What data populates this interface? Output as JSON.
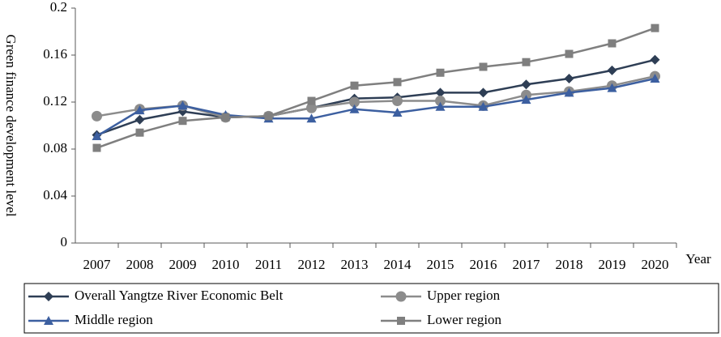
{
  "chart_data": {
    "type": "line",
    "y_label": "Green finance development level",
    "x_label": "Year",
    "categories": [
      "2007",
      "2008",
      "2009",
      "2010",
      "2011",
      "2012",
      "2013",
      "2014",
      "2015",
      "2016",
      "2017",
      "2018",
      "2019",
      "2020"
    ],
    "series": [
      {
        "name": "Overall Yangtze River Economic Belt",
        "color": "#2e3e55",
        "marker": "diamond",
        "values": [
          0.092,
          0.105,
          0.112,
          0.107,
          0.108,
          0.115,
          0.123,
          0.124,
          0.128,
          0.128,
          0.135,
          0.14,
          0.147,
          0.156
        ]
      },
      {
        "name": "Upper region",
        "color": "#8c8c8c",
        "marker": "circle",
        "values": [
          0.108,
          0.114,
          0.117,
          0.107,
          0.108,
          0.115,
          0.12,
          0.121,
          0.121,
          0.117,
          0.126,
          0.129,
          0.134,
          0.142
        ]
      },
      {
        "name": "Middle region",
        "color": "#3c5fa0",
        "marker": "triangle",
        "values": [
          0.091,
          0.113,
          0.117,
          0.109,
          0.106,
          0.106,
          0.114,
          0.111,
          0.116,
          0.116,
          0.122,
          0.128,
          0.132,
          0.14
        ]
      },
      {
        "name": "Lower region",
        "color": "#7f7f7f",
        "marker": "square",
        "values": [
          0.081,
          0.094,
          0.104,
          0.107,
          0.108,
          0.121,
          0.134,
          0.137,
          0.145,
          0.15,
          0.154,
          0.161,
          0.17,
          0.183
        ]
      }
    ],
    "ylim": [
      0,
      0.2
    ],
    "yticks": [
      0,
      0.04,
      0.08,
      0.12,
      0.16,
      0.2
    ],
    "legend": "bottom"
  }
}
